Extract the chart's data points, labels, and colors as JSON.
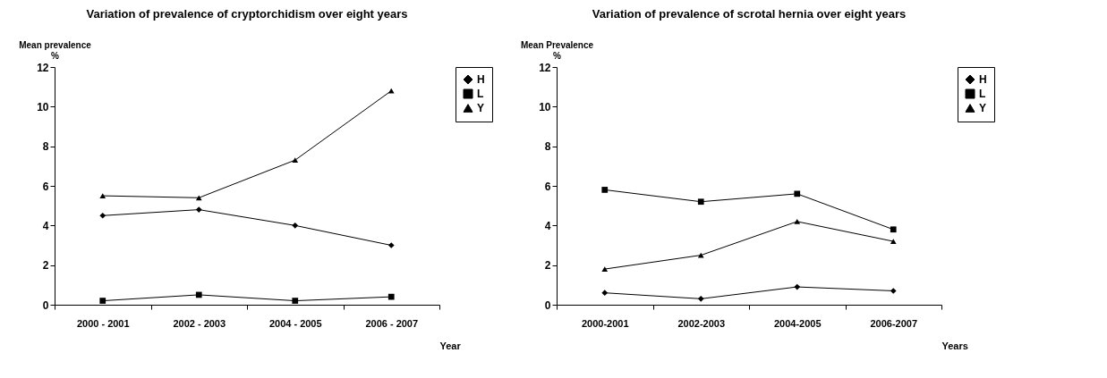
{
  "chart_data": [
    {
      "type": "line",
      "title": "Variation of prevalence of cryptorchidism over eight years",
      "ylabel": "Mean prevalence %",
      "xlabel": "Year",
      "categories": [
        "2000 - 2001",
        "2002 - 2003",
        "2004 - 2005",
        "2006 - 2007"
      ],
      "ylim": [
        0,
        12
      ],
      "yticks": [
        0,
        2,
        4,
        6,
        8,
        10,
        12
      ],
      "grid": false,
      "legend": "right",
      "line_style": "solid",
      "series": [
        {
          "name": "H",
          "color": "#000000",
          "marker": "diamond",
          "values": [
            4.5,
            4.8,
            4.0,
            3.0
          ]
        },
        {
          "name": "L",
          "color": "#000000",
          "marker": "square",
          "values": [
            0.2,
            0.5,
            0.2,
            0.4
          ]
        },
        {
          "name": "Y",
          "color": "#000000",
          "marker": "triangle",
          "values": [
            5.5,
            5.4,
            7.3,
            10.8
          ]
        }
      ]
    },
    {
      "type": "line",
      "title": "Variation of prevalence of scrotal hernia over eight years",
      "ylabel": "Mean Prevalence %",
      "xlabel": "Years",
      "categories": [
        "2000-2001",
        "2002-2003",
        "2004-2005",
        "2006-2007"
      ],
      "ylim": [
        0,
        12
      ],
      "yticks": [
        0,
        2,
        4,
        6,
        8,
        10,
        12
      ],
      "grid": false,
      "legend": "right",
      "line_style": "solid",
      "series": [
        {
          "name": "H",
          "color": "#000000",
          "marker": "diamond",
          "values": [
            0.6,
            0.3,
            0.9,
            0.7
          ]
        },
        {
          "name": "L",
          "color": "#000000",
          "marker": "square",
          "values": [
            5.8,
            5.2,
            5.6,
            3.8
          ]
        },
        {
          "name": "Y",
          "color": "#000000",
          "marker": "triangle",
          "values": [
            1.8,
            2.5,
            4.2,
            3.2
          ]
        }
      ]
    }
  ]
}
